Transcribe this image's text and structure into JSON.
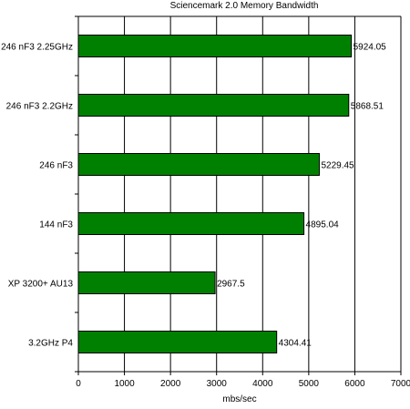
{
  "chart_data": {
    "type": "bar",
    "orientation": "horizontal",
    "title": "Sciencemark 2.0 Memory Bandwidth",
    "xlabel": "mbs/sec",
    "ylabel": "",
    "categories": [
      "246 nF3 2.25GHz",
      "246 nF3 2.2GHz",
      "246 nF3",
      "144 nF3",
      "XP 3200+ AU13",
      "3.2GHz P4"
    ],
    "values": [
      5924.05,
      5868.51,
      5229.45,
      4895.04,
      2967.5,
      4304.41
    ],
    "value_labels": [
      "5924.05",
      "5868.51",
      "5229.45",
      "4895.04",
      "2967.5",
      "4304.41"
    ],
    "xlim": [
      0,
      7000
    ],
    "xticks": [
      "0",
      "1000",
      "2000",
      "3000",
      "4000",
      "5000",
      "6000",
      "7000"
    ],
    "grid": "vertical",
    "legend": "none",
    "bar_color": "#008000",
    "bar_edge_color": "#000000"
  }
}
